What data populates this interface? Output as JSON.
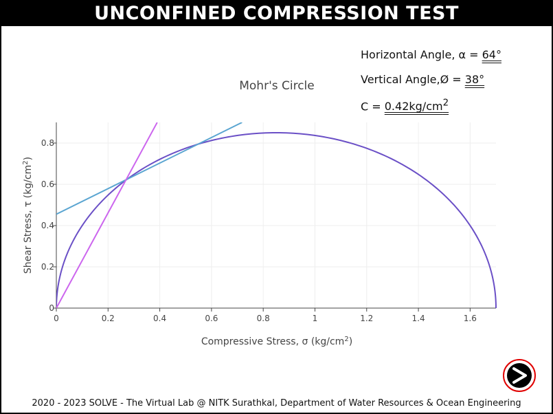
{
  "page": {
    "title": "UNCONFINED COMPRESSION TEST",
    "footer": "2020 - 2023 SOLVE - The Virtual Lab @ NITK Surathkal, Department of Water Resources & Ocean Engineering"
  },
  "info": {
    "horizontal_label": "Horizontal Angle, α = ",
    "horizontal_value": "64°",
    "vertical_label": "Vertical Angle,Ø = ",
    "vertical_value": "38°",
    "c_label": "C = ",
    "c_value": "0.42kg/cm",
    "c_sup": "2"
  },
  "icons": {
    "next": "next-arrow-icon"
  },
  "colors": {
    "circle": "#6a4fc6",
    "envelope": "#5aa5d1",
    "inclined_line": "#cc66ee",
    "grid": "#eeeeee",
    "title_bg": "#000000",
    "next_ring": "#e00000"
  },
  "chart_data": {
    "type": "line",
    "title": "Mohr's Circle",
    "xlabel": "Compressive Stress, σ (kg/cm",
    "xlabel_sup": "2",
    "xlabel_end": ")",
    "ylabel": "Shear Stress, τ (kg/cm",
    "ylabel_sup": "2",
    "ylabel_end": ")",
    "xlim": [
      0,
      1.7
    ],
    "ylim": [
      0,
      0.9
    ],
    "xticks": [
      0,
      0.2,
      0.4,
      0.6,
      0.8,
      1,
      1.2,
      1.4,
      1.6
    ],
    "xtick_labels": [
      "0",
      "0.2",
      "0.4",
      "0.6",
      "0.8",
      "1",
      "1.2",
      "1.4",
      "1.6"
    ],
    "yticks": [
      0,
      0.2,
      0.4,
      0.6,
      0.8
    ],
    "ytick_labels": [
      "0",
      "0.2",
      "0.4",
      "0.6",
      "0.8"
    ],
    "grid": true,
    "series": [
      {
        "kind": "semicircle",
        "center": 0.85,
        "radius": 0.85,
        "color": "#6a4fc6"
      },
      {
        "kind": "line",
        "x": [
          0,
          0.718
        ],
        "y": [
          0.455,
          0.9
        ],
        "color": "#5aa5d1"
      },
      {
        "kind": "line",
        "x": [
          0,
          0.39
        ],
        "y": [
          0,
          0.9
        ],
        "color": "#cc66ee"
      }
    ]
  }
}
